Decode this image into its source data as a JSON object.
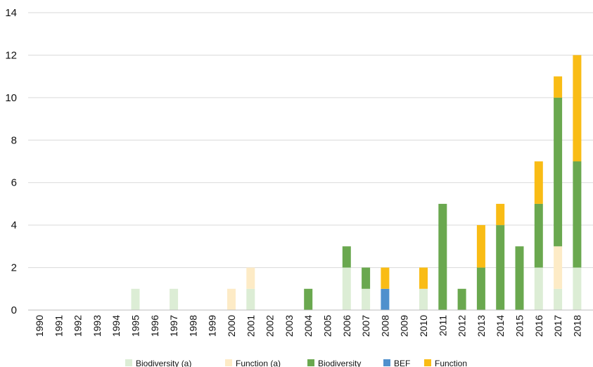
{
  "chart_data": {
    "type": "bar",
    "stacked": true,
    "categories": [
      "1990",
      "1991",
      "1992",
      "1993",
      "1994",
      "1995",
      "1996",
      "1997",
      "1998",
      "1999",
      "2000",
      "2001",
      "2002",
      "2003",
      "2004",
      "2005",
      "2006",
      "2007",
      "2008",
      "2009",
      "2010",
      "2011",
      "2012",
      "2013",
      "2014",
      "2015",
      "2016",
      "2017",
      "2018"
    ],
    "series": [
      {
        "name": "Biodiversity (a)",
        "color": "#dcedd5",
        "values": [
          0,
          0,
          0,
          0,
          0,
          1,
          0,
          1,
          0,
          0,
          0,
          1,
          0,
          0,
          0,
          0,
          2,
          1,
          0,
          0,
          1,
          0,
          0,
          0,
          0,
          0,
          2,
          1,
          2
        ]
      },
      {
        "name": "Function (a)",
        "color": "#fdebc6",
        "values": [
          0,
          0,
          0,
          0,
          0,
          0,
          0,
          0,
          0,
          0,
          1,
          1,
          0,
          0,
          0,
          0,
          0,
          0,
          0,
          0,
          0,
          0,
          0,
          0,
          0,
          0,
          0,
          2,
          0
        ]
      },
      {
        "name": "Biodiversity",
        "color": "#6aa84f",
        "values": [
          0,
          0,
          0,
          0,
          0,
          0,
          0,
          0,
          0,
          0,
          0,
          0,
          0,
          0,
          1,
          0,
          1,
          1,
          0,
          0,
          0,
          5,
          1,
          2,
          4,
          3,
          3,
          7,
          5
        ]
      },
      {
        "name": "BEF",
        "color": "#4f90cd",
        "values": [
          0,
          0,
          0,
          0,
          0,
          0,
          0,
          0,
          0,
          0,
          0,
          0,
          0,
          0,
          0,
          0,
          0,
          0,
          1,
          0,
          0,
          0,
          0,
          0,
          0,
          0,
          0,
          0,
          0
        ]
      },
      {
        "name": "Function",
        "color": "#f9bc15",
        "values": [
          0,
          0,
          0,
          0,
          0,
          0,
          0,
          0,
          0,
          0,
          0,
          0,
          0,
          0,
          0,
          0,
          0,
          0,
          1,
          0,
          1,
          0,
          0,
          2,
          1,
          0,
          2,
          1,
          5
        ]
      }
    ],
    "ylim": [
      0,
      14
    ],
    "yticks": [
      0,
      2,
      4,
      6,
      8,
      10,
      12,
      14
    ],
    "grid": true,
    "legend_position": "bottom"
  }
}
